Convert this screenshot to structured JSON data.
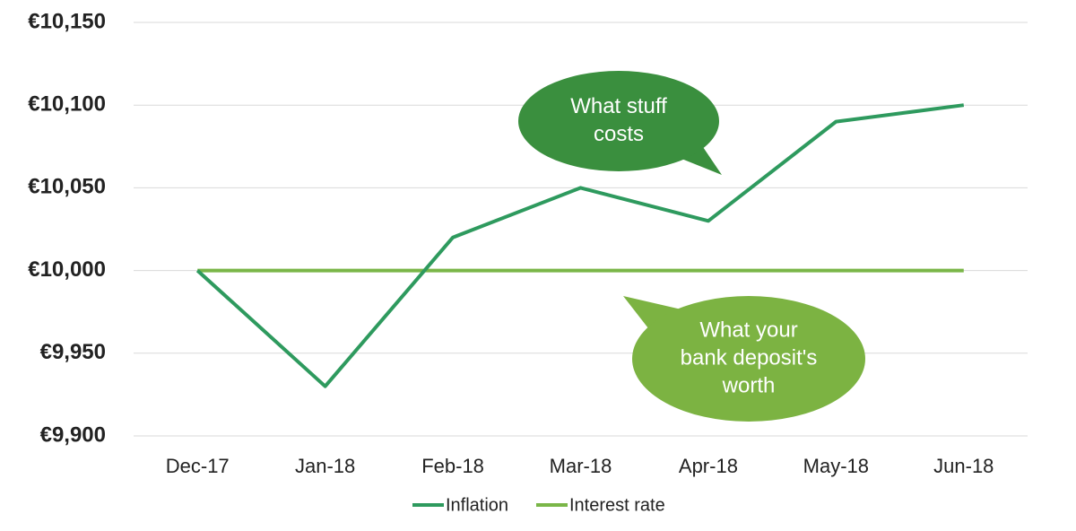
{
  "chart_data": {
    "type": "line",
    "categories": [
      "Dec-17",
      "Jan-18",
      "Feb-18",
      "Mar-18",
      "Apr-18",
      "May-18",
      "Jun-18"
    ],
    "series": [
      {
        "name": "Inflation",
        "color": "#2e9a5e",
        "values": [
          10000,
          9930,
          10020,
          10050,
          10030,
          10090,
          10100
        ]
      },
      {
        "name": "Interest rate",
        "color": "#7ab648",
        "values": [
          10000,
          10000,
          10000,
          10000,
          10000,
          10000,
          10000
        ]
      }
    ],
    "ylim": [
      9900,
      10150
    ],
    "yticks": [
      {
        "value": 9900,
        "label": "€9,900"
      },
      {
        "value": 9950,
        "label": "€9,950"
      },
      {
        "value": 10000,
        "label": "€10,000"
      },
      {
        "value": 10050,
        "label": "€10,050"
      },
      {
        "value": 10100,
        "label": "€10,100"
      },
      {
        "value": 10150,
        "label": "€10,150"
      }
    ],
    "grid": true,
    "legend": "bottom",
    "annotations": [
      {
        "lines": [
          "What stuff",
          "costs"
        ],
        "color": "#3a8f3e"
      },
      {
        "lines": [
          "What your",
          "bank deposit's",
          "worth"
        ],
        "color": "#7cb342"
      }
    ]
  }
}
